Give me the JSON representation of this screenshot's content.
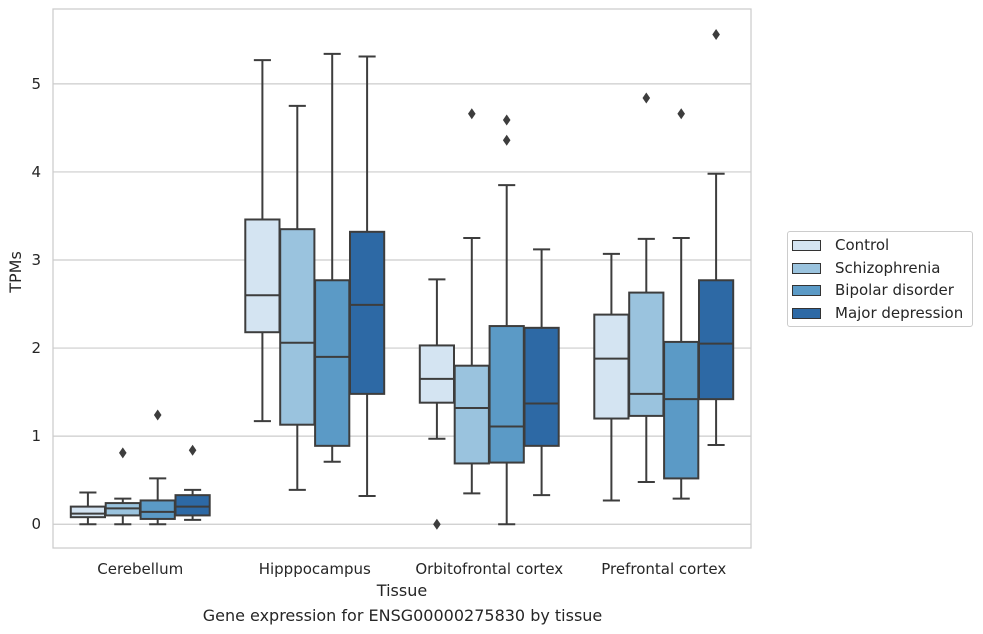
{
  "caption": "Gene expression for ENSG00000275830 by tissue",
  "chart_data": {
    "type": "box",
    "xlabel": "Tissue",
    "ylabel": "TPMs",
    "ylim": [
      -0.27,
      5.85
    ],
    "yticks": [
      0,
      1,
      2,
      3,
      4,
      5
    ],
    "grid": true,
    "legend_position": "right",
    "categories": [
      "Cerebellum",
      "Hipppocampus",
      "Orbitofrontal cortex",
      "Prefrontal cortex"
    ],
    "series": [
      {
        "name": "Control",
        "color": "#d4e4f2",
        "boxes": [
          {
            "whisker_low": 0.0,
            "q1": 0.08,
            "median": 0.12,
            "q3": 0.2,
            "whisker_high": 0.36,
            "outliers": []
          },
          {
            "whisker_low": 1.17,
            "q1": 2.18,
            "median": 2.6,
            "q3": 3.46,
            "whisker_high": 5.27,
            "outliers": []
          },
          {
            "whisker_low": 0.97,
            "q1": 1.38,
            "median": 1.65,
            "q3": 2.03,
            "whisker_high": 2.78,
            "outliers": [
              0.0
            ]
          },
          {
            "whisker_low": 0.27,
            "q1": 1.2,
            "median": 1.88,
            "q3": 2.38,
            "whisker_high": 3.07,
            "outliers": []
          }
        ]
      },
      {
        "name": "Schizophrenia",
        "color": "#9ac3de",
        "boxes": [
          {
            "whisker_low": 0.0,
            "q1": 0.1,
            "median": 0.18,
            "q3": 0.24,
            "whisker_high": 0.29,
            "outliers": [
              0.81
            ]
          },
          {
            "whisker_low": 0.39,
            "q1": 1.13,
            "median": 2.06,
            "q3": 3.35,
            "whisker_high": 4.75,
            "outliers": []
          },
          {
            "whisker_low": 0.35,
            "q1": 0.69,
            "median": 1.32,
            "q3": 1.8,
            "whisker_high": 3.25,
            "outliers": [
              4.66
            ]
          },
          {
            "whisker_low": 0.48,
            "q1": 1.23,
            "median": 1.48,
            "q3": 2.63,
            "whisker_high": 3.24,
            "outliers": [
              4.84
            ]
          }
        ]
      },
      {
        "name": "Bipolar disorder",
        "color": "#5b9ac6",
        "boxes": [
          {
            "whisker_low": 0.0,
            "q1": 0.06,
            "median": 0.14,
            "q3": 0.27,
            "whisker_high": 0.52,
            "outliers": [
              1.24
            ]
          },
          {
            "whisker_low": 0.71,
            "q1": 0.89,
            "median": 1.9,
            "q3": 2.77,
            "whisker_high": 5.34,
            "outliers": []
          },
          {
            "whisker_low": 0.0,
            "q1": 0.7,
            "median": 1.11,
            "q3": 2.25,
            "whisker_high": 3.85,
            "outliers": [
              4.59,
              4.36
            ]
          },
          {
            "whisker_low": 0.29,
            "q1": 0.52,
            "median": 1.42,
            "q3": 2.07,
            "whisker_high": 3.25,
            "outliers": [
              4.66
            ]
          }
        ]
      },
      {
        "name": "Major depression",
        "color": "#2d69a5",
        "boxes": [
          {
            "whisker_low": 0.05,
            "q1": 0.1,
            "median": 0.2,
            "q3": 0.33,
            "whisker_high": 0.39,
            "outliers": [
              0.84
            ]
          },
          {
            "whisker_low": 0.32,
            "q1": 1.48,
            "median": 2.49,
            "q3": 3.32,
            "whisker_high": 5.31,
            "outliers": []
          },
          {
            "whisker_low": 0.33,
            "q1": 0.89,
            "median": 1.37,
            "q3": 2.23,
            "whisker_high": 3.12,
            "outliers": []
          },
          {
            "whisker_low": 0.9,
            "q1": 1.42,
            "median": 2.05,
            "q3": 2.77,
            "whisker_high": 3.98,
            "outliers": [
              5.56
            ]
          }
        ]
      }
    ]
  }
}
